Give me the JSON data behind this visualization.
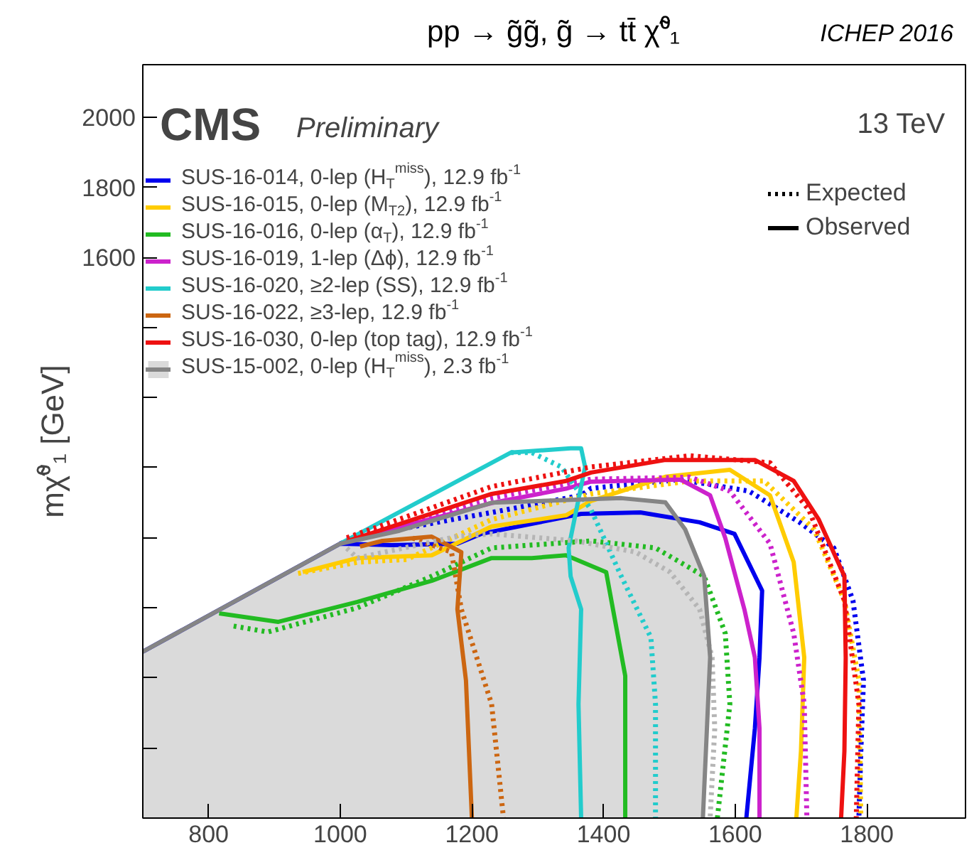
{
  "chart_data": {
    "type": "line",
    "title": "pp → g̃g̃,  g̃ → tt̄ χ̃⁰₁",
    "ylabel": "mχ̃⁰₁ [GeV]",
    "annotations": [
      "ICHEP 2016",
      "CMS",
      "Preliminary",
      "13 TeV",
      "Expected",
      "Observed"
    ],
    "xlim": [
      700,
      1950
    ],
    "ylim": [
      0,
      2150
    ],
    "xticks": [
      800,
      1000,
      1200,
      1400,
      1600,
      1800
    ],
    "yticks": [
      {
        "value": 0,
        "label": null
      },
      {
        "value": 200,
        "label": null
      },
      {
        "value": 400,
        "label": null
      },
      {
        "value": 600,
        "label": null
      },
      {
        "value": 800,
        "label": null
      },
      {
        "value": 1000,
        "label": null
      },
      {
        "value": 1200,
        "label": null
      },
      {
        "value": 1400,
        "label": null
      },
      1600,
      1800,
      2000
    ],
    "grid": false,
    "legend": "top left",
    "series": [
      {
        "name": "SUS-16-014, 0-lep (H$_{T}$$^{miss}$), 12.9 fb$^{-1}$",
        "color": "#0000ee",
        "line_style": "solid",
        "x": [
          700,
          1000,
          1078,
          1178,
          1214,
          1366,
          1456,
          1546,
          1599,
          1641,
          1637,
          1630,
          1617
        ],
        "values": [
          475,
          783,
          779,
          783,
          811,
          868,
          872,
          844,
          811,
          649,
          458,
          256,
          0
        ]
      },
      {
        "color": "#0000ee",
        "line_style": "dotted",
        "x": [
          1000,
          1026,
          1230,
          1366,
          1381,
          1517,
          1621,
          1698,
          1750,
          1779,
          1795,
          1791,
          1788
        ],
        "values": [
          783,
          803,
          872,
          921,
          941,
          966,
          933,
          844,
          771,
          621,
          393,
          191,
          0
        ]
      },
      {
        "name": "SUS-16-015, 0-lep (M$_{T2}$), 12.9 fb$^{-1}$",
        "color": "#ffcc00",
        "line_style": "solid",
        "x": [
          943,
          1026,
          1139,
          1230,
          1343,
          1381,
          1494,
          1592,
          1653,
          1689,
          1705,
          1700,
          1693
        ],
        "values": [
          702,
          742,
          750,
          832,
          864,
          905,
          974,
          994,
          921,
          730,
          458,
          191,
          0
        ]
      },
      {
        "color": "#ffcc00",
        "line_style": "dotted",
        "x": [
          936,
          1026,
          1101,
          1230,
          1381,
          1531,
          1644,
          1720,
          1766,
          1788,
          1791
        ],
        "values": [
          698,
          730,
          738,
          852,
          925,
          962,
          962,
          824,
          621,
          393,
          0
        ]
      },
      {
        "name": "SUS-16-016, 0-lep (α$_{T}$), 12.9 fb$^{-1}$",
        "color": "#22bb22",
        "line_style": "solid",
        "x": [
          816,
          906,
          1026,
          1139,
          1230,
          1291,
          1343,
          1404,
          1433,
          1433
        ],
        "values": [
          584,
          560,
          617,
          677,
          742,
          742,
          750,
          702,
          406,
          0
        ]
      },
      {
        "color": "#22bb22",
        "line_style": "dotted",
        "x": [
          838,
          890,
          1026,
          1139,
          1230,
          1381,
          1479,
          1553,
          1585,
          1592,
          1573
        ],
        "values": [
          548,
          531,
          600,
          690,
          771,
          791,
          771,
          690,
          527,
          325,
          0
        ]
      },
      {
        "name": "SUS-16-019, 1-lep (Δϕ), 12.9 fb$^{-1}$",
        "color": "#cc22cc",
        "line_style": "solid",
        "x": [
          1010,
          1230,
          1343,
          1381,
          1517,
          1562,
          1585,
          1614,
          1630,
          1637,
          1637
        ],
        "values": [
          790,
          899,
          940,
          960,
          966,
          921,
          799,
          596,
          458,
          256,
          0
        ]
      },
      {
        "color": "#cc22cc",
        "line_style": "dotted",
        "x": [
          1010,
          1230,
          1381,
          1531,
          1592,
          1653,
          1689,
          1705,
          1709
        ],
        "values": [
          795,
          913,
          967,
          973,
          933,
          783,
          527,
          325,
          0
        ]
      },
      {
        "name": "SUS-16-020, ≥2-lep (SS), 12.9 fb$^{-1}$",
        "color": "#22cccc",
        "line_style": "solid",
        "x": [
          1000,
          1259,
          1350,
          1366,
          1372,
          1347,
          1350,
          1366,
          1362,
          1366
        ],
        "values": [
          783,
          1043,
          1055,
          1055,
          1002,
          771,
          690,
          596,
          325,
          0
        ]
      },
      {
        "color": "#22cccc",
        "line_style": "dotted",
        "x": [
          1259,
          1291,
          1336,
          1381,
          1427,
          1472,
          1479,
          1479
        ],
        "values": [
          1043,
          1043,
          1002,
          880,
          690,
          515,
          325,
          0
        ]
      },
      {
        "name": "SUS-16-022, ≥3-lep, 12.9 fb$^{-1}$",
        "color": "#cc6611",
        "line_style": "solid",
        "x": [
          1030,
          1064,
          1139,
          1184,
          1178,
          1191,
          1200
        ],
        "values": [
          775,
          791,
          803,
          759,
          596,
          393,
          0
        ]
      },
      {
        "color": "#cc6611",
        "line_style": "dotted",
        "x": [
          1110,
          1169,
          1184,
          1230,
          1248
        ],
        "values": [
          799,
          759,
          596,
          325,
          0
        ]
      },
      {
        "name": "SUS-16-030, 0-lep (top tag), 12.9 fb$^{-1}$",
        "color": "#ee1111",
        "line_style": "solid",
        "x": [
          1010,
          1230,
          1343,
          1381,
          1494,
          1630,
          1689,
          1727,
          1766,
          1768,
          1766,
          1761
        ],
        "values": [
          790,
          925,
          962,
          986,
          1022,
          1022,
          962,
          852,
          690,
          458,
          191,
          0
        ]
      },
      {
        "color": "#ee1111",
        "line_style": "dotted",
        "x": [
          1010,
          1230,
          1381,
          1531,
          1653,
          1712,
          1766,
          1788,
          1784
        ],
        "values": [
          800,
          946,
          1002,
          1034,
          1014,
          880,
          621,
          325,
          0
        ]
      },
      {
        "name": "SUS-15-002, 0-lep (H$_{T}$$^{miss}$), 2.3 fb$^{-1}$",
        "type": "area",
        "color": "#858585",
        "line_style": "solid",
        "x": [
          700,
          1000,
          1090,
          1230,
          1427,
          1494,
          1524,
          1553,
          1562,
          1551
        ],
        "values": [
          475,
          783,
          820,
          900,
          913,
          901,
          824,
          690,
          459,
          0
        ]
      },
      {
        "color": "#b5b5b5",
        "line_style": "dotted",
        "x": [
          1010,
          1026,
          1178,
          1230,
          1358,
          1449,
          1501,
          1546,
          1565,
          1569,
          1562
        ],
        "values": [
          770,
          742,
          804,
          811,
          791,
          759,
          702,
          596,
          458,
          256,
          0
        ]
      }
    ]
  }
}
